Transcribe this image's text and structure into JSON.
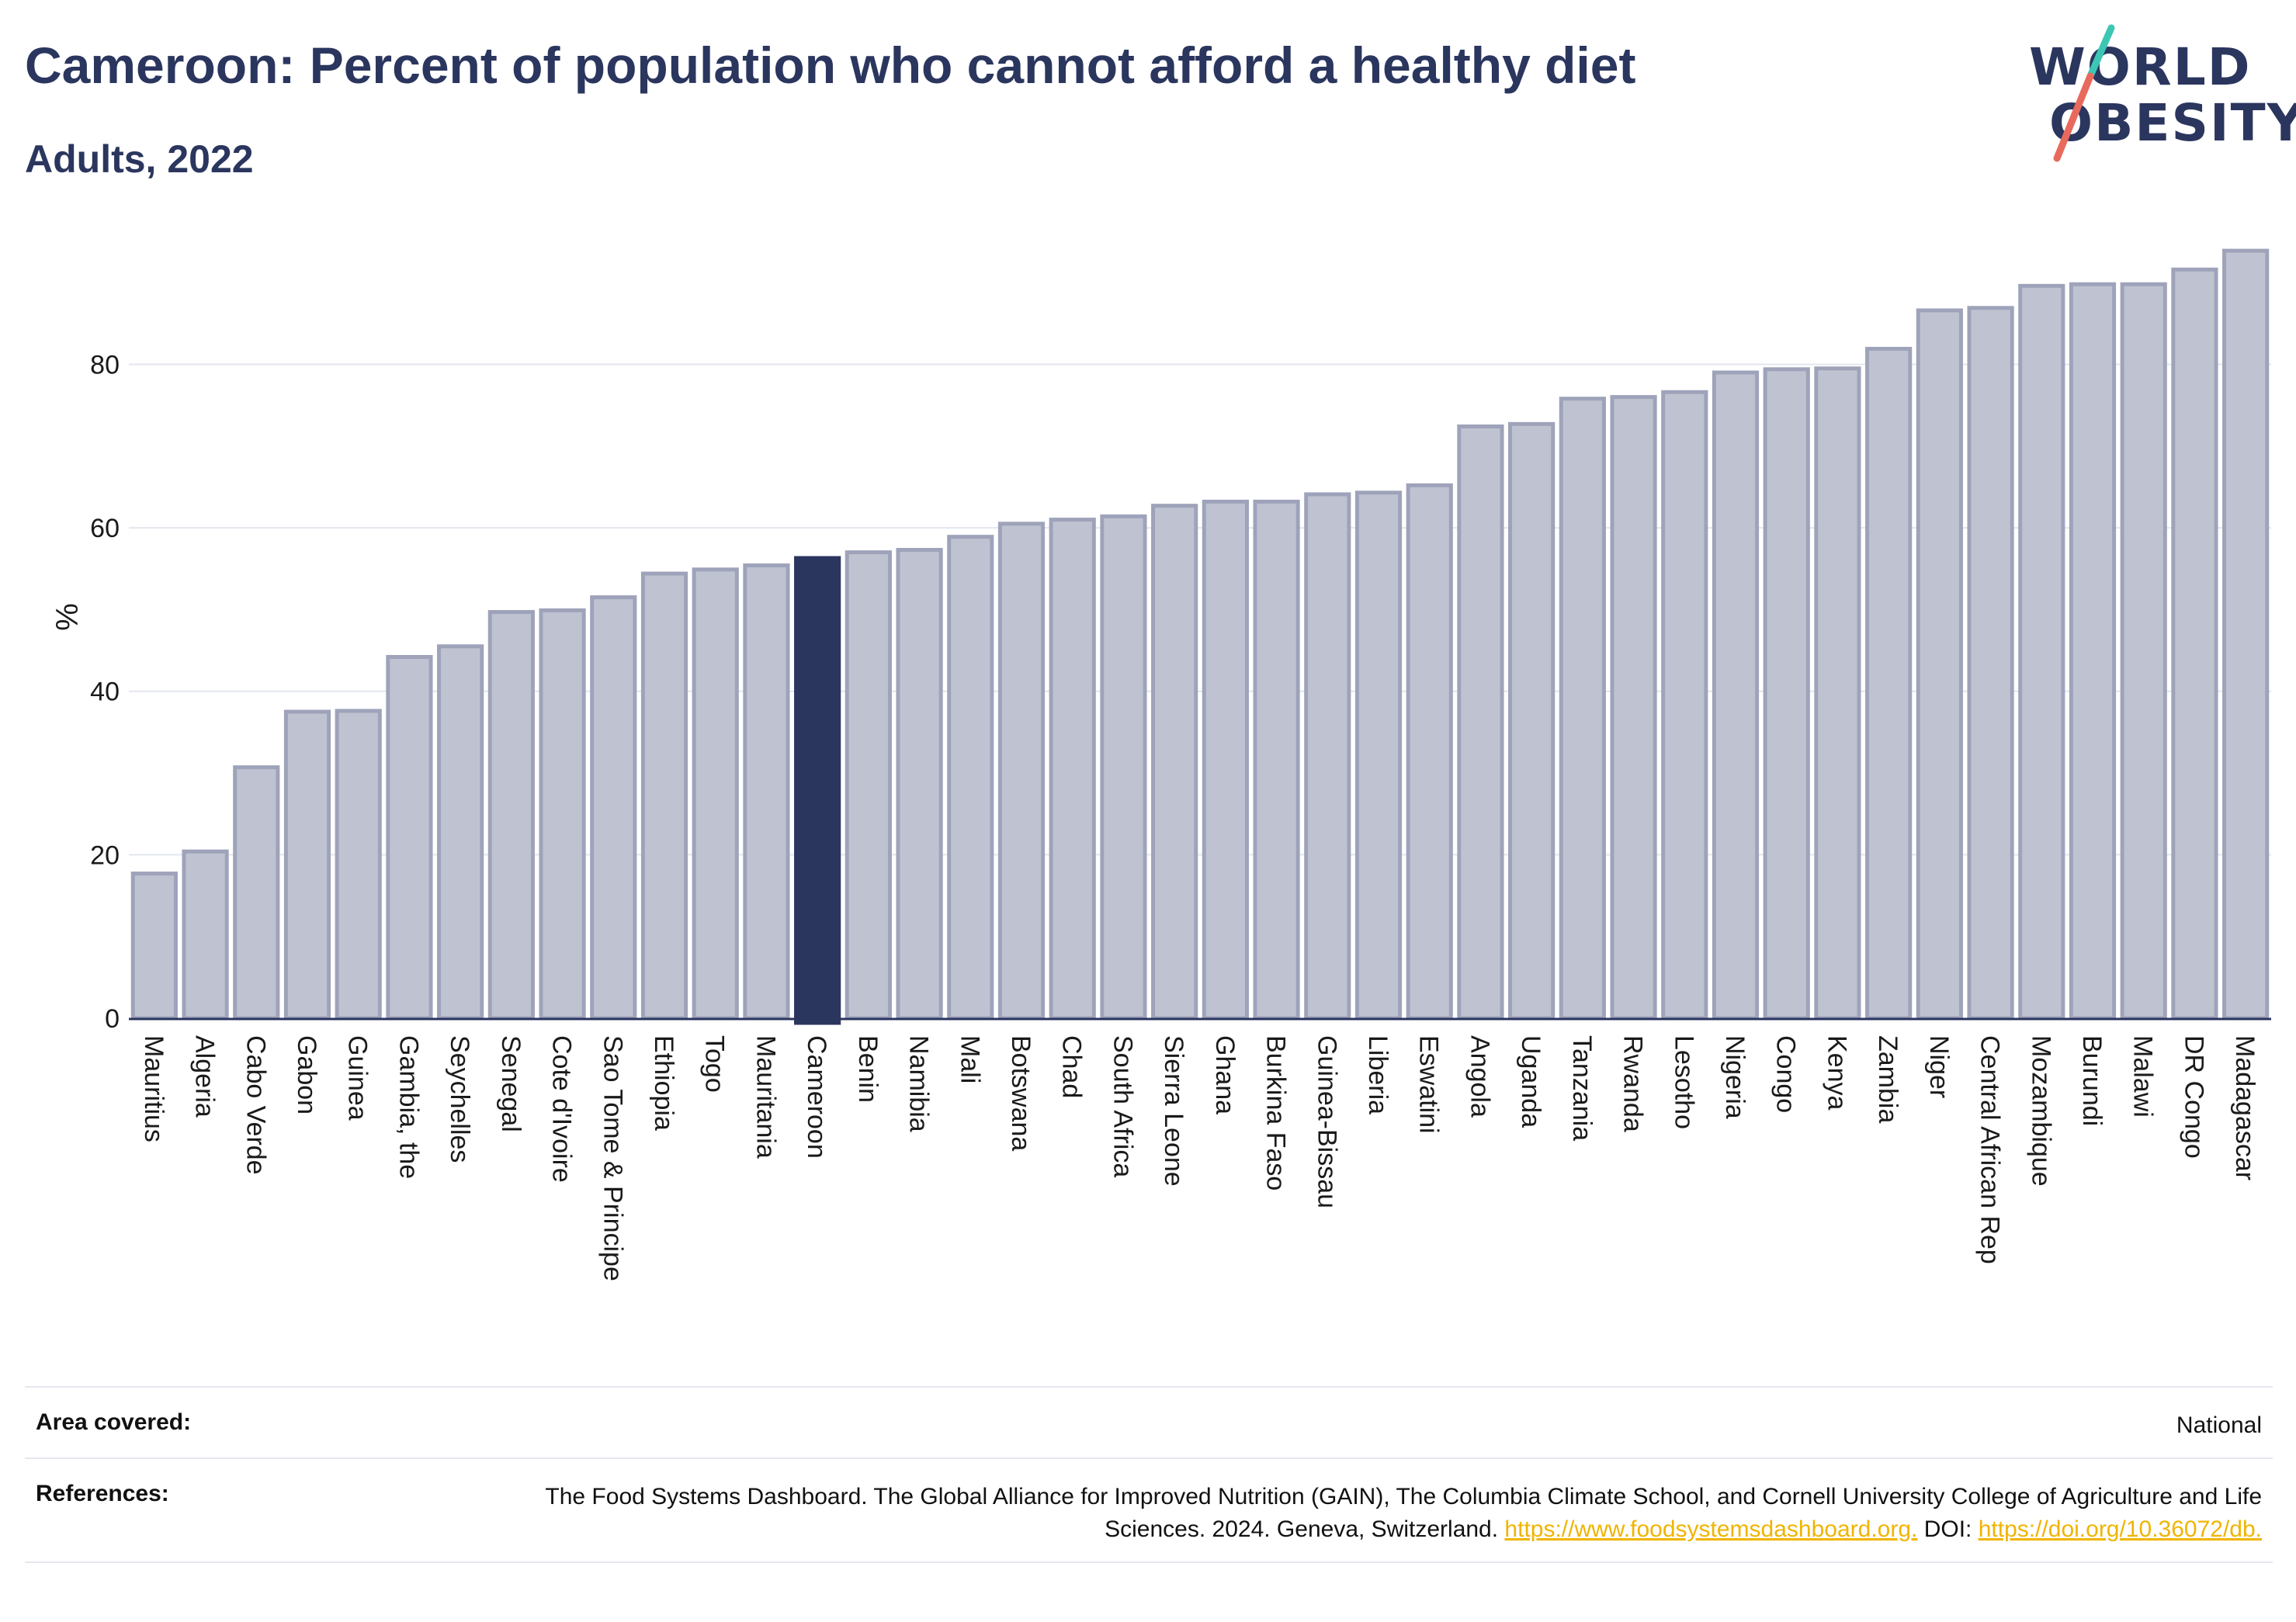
{
  "title": "Cameroon: Percent of population who cannot afford a healthy diet",
  "subtitle": "Adults, 2022",
  "logo": {
    "line1": "WORLD",
    "line2": "OBESITY",
    "colors": {
      "navy": "#2b365f",
      "teal": "#3cc7b4",
      "coral": "#e86a5c"
    }
  },
  "colors": {
    "bar": "#bfc3d1",
    "bar_border": "#9ea3ba",
    "highlight": "#2b365f",
    "grid": "#e4e6ee",
    "axis": "#2b365f"
  },
  "chart_data": {
    "type": "bar",
    "title": "Cameroon: Percent of population who cannot afford a healthy diet",
    "subtitle": "Adults, 2022",
    "ylabel": "%",
    "xlabel": "",
    "ylim": [
      0,
      94
    ],
    "yticks": [
      0,
      20,
      40,
      60,
      80
    ],
    "grid": true,
    "highlight": "Cameroon",
    "categories": [
      "Mauritius",
      "Algeria",
      "Cabo Verde",
      "Gabon",
      "Guinea",
      "Gambia, the",
      "Seychelles",
      "Senegal",
      "Cote d'Ivoire",
      "Sao Tome & Principe",
      "Ethiopia",
      "Togo",
      "Mauritania",
      "Cameroon",
      "Benin",
      "Namibia",
      "Mali",
      "Botswana",
      "Chad",
      "South Africa",
      "Sierra Leone",
      "Ghana",
      "Burkina Faso",
      "Guinea-Bissau",
      "Liberia",
      "Eswatini",
      "Angola",
      "Uganda",
      "Tanzania",
      "Rwanda",
      "Lesotho",
      "Nigeria",
      "Congo",
      "Kenya",
      "Zambia",
      "Niger",
      "Central African Rep",
      "Mozambique",
      "Burundi",
      "Malawi",
      "DR Congo",
      "Madagascar"
    ],
    "values": [
      17.7,
      20.4,
      30.7,
      37.5,
      37.6,
      44.2,
      45.5,
      49.7,
      49.9,
      51.5,
      54.4,
      54.9,
      55.4,
      56.3,
      57.0,
      57.3,
      58.9,
      60.5,
      61.0,
      61.4,
      62.7,
      63.2,
      63.2,
      64.1,
      64.3,
      65.2,
      72.4,
      72.7,
      75.8,
      76.0,
      76.6,
      79.0,
      79.4,
      79.5,
      81.9,
      86.6,
      86.9,
      89.6,
      89.8,
      89.8,
      91.6,
      93.9
    ]
  },
  "table": {
    "area_label": "Area covered:",
    "area_value": "National",
    "refs_label": "References:",
    "refs_text": "The Food Systems Dashboard. The Global Alliance for Improved Nutrition (GAIN), The Columbia Climate School, and Cornell University College of Agriculture and Life Sciences. 2024. Geneva, Switzerland.",
    "refs_link1": "https://www.foodsystemsdashboard.org.",
    "refs_doi": "DOI:",
    "refs_link2": "https://doi.org/10.36072/db."
  }
}
